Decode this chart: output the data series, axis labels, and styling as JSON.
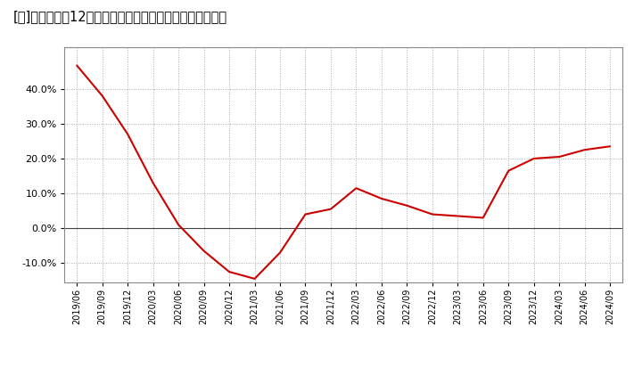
{
  "title": "[恱]　売上高の12か月移動合計の対前年同期増減率の推移",
  "title_suffix": "売上高の12か月移動合計の対前年同期増減率の推移",
  "line_color": "#cc0000",
  "background_color": "#ffffff",
  "plot_bg_color": "#ffffff",
  "grid_color": "#aaaaaa",
  "ylim": [
    -0.155,
    0.52
  ],
  "yticks": [
    -0.1,
    0.0,
    0.1,
    0.2,
    0.3,
    0.4
  ],
  "dates": [
    "2019/06",
    "2019/09",
    "2019/12",
    "2020/03",
    "2020/06",
    "2020/09",
    "2020/12",
    "2021/03",
    "2021/06",
    "2021/09",
    "2021/12",
    "2022/03",
    "2022/06",
    "2022/09",
    "2022/12",
    "2023/03",
    "2023/06",
    "2023/09",
    "2023/12",
    "2024/03",
    "2024/06",
    "2024/09"
  ],
  "values": [
    0.467,
    0.38,
    0.27,
    0.13,
    0.01,
    -0.065,
    -0.125,
    -0.145,
    -0.07,
    0.04,
    0.055,
    0.115,
    0.085,
    0.065,
    0.04,
    0.035,
    0.03,
    0.165,
    0.2,
    0.205,
    0.225,
    0.235
  ]
}
